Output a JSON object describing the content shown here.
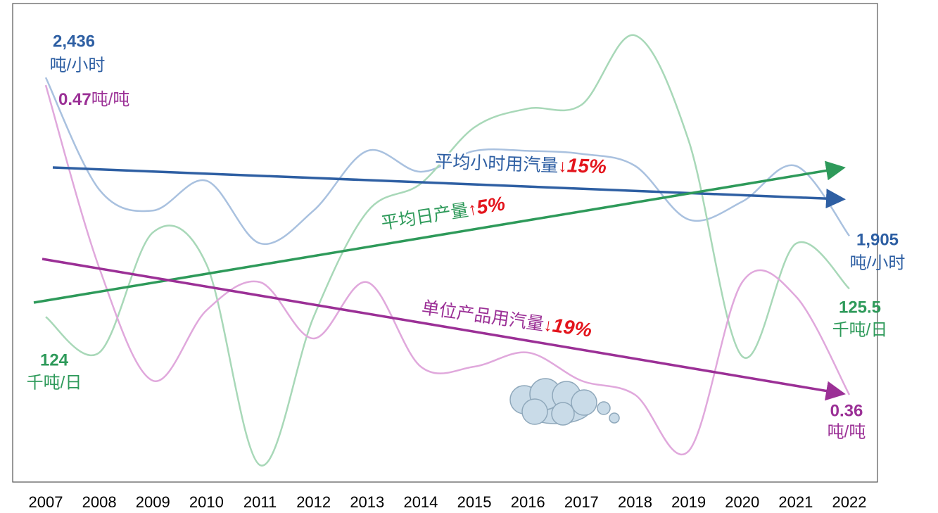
{
  "chart_data": {
    "type": "line",
    "x": [
      "2007",
      "2008",
      "2009",
      "2010",
      "2011",
      "2012",
      "2013",
      "2014",
      "2015",
      "2016",
      "2017",
      "2018",
      "2019",
      "2020",
      "2021",
      "2022"
    ],
    "series": [
      {
        "name": "平均小时用汽量",
        "color": "#2e5fa3",
        "line_color": "#a9c1df",
        "unit": "吨/小时",
        "ylim": [
          1080,
          2684
        ],
        "values": [
          2436,
          2060,
          1990,
          2090,
          1880,
          1990,
          2190,
          2120,
          2190,
          2190,
          2180,
          2140,
          1960,
          2020,
          2140,
          1905
        ],
        "value_labels": [
          "2,436",
          null,
          null,
          null,
          null,
          null,
          null,
          null,
          null,
          null,
          null,
          null,
          null,
          null,
          null,
          "1,905"
        ]
      },
      {
        "name": "平均日产量",
        "color": "#2e9a5a",
        "line_color": "#a8d8b8",
        "unit": "千吨/日",
        "ylim": [
          115.2,
          140.7
        ],
        "values": [
          124,
          122.1,
          128.5,
          126.8,
          116.1,
          124,
          129.6,
          131.1,
          134.1,
          135.1,
          135.3,
          139,
          133.4,
          121.9,
          127.9,
          125.5
        ]
      },
      {
        "name": "单位产品用汽量",
        "color": "#9b3096",
        "line_color": "#e0a8dc",
        "unit": "吨/吨",
        "ylim": [
          0.329,
          0.499
        ],
        "values": [
          0.47,
          0.405,
          0.365,
          0.39,
          0.4,
          0.38,
          0.4,
          0.37,
          0.37,
          0.375,
          0.365,
          0.36,
          0.34,
          0.4,
          0.395,
          0.36
        ]
      }
    ],
    "annotations": [
      {
        "text": "平均小时用汽量",
        "arrow": "↓",
        "change": "15%"
      },
      {
        "text": "平均日产量",
        "arrow": "↑",
        "change": "5%"
      },
      {
        "text": "单位产品用汽量",
        "arrow": "↓",
        "change": "19%"
      }
    ]
  }
}
